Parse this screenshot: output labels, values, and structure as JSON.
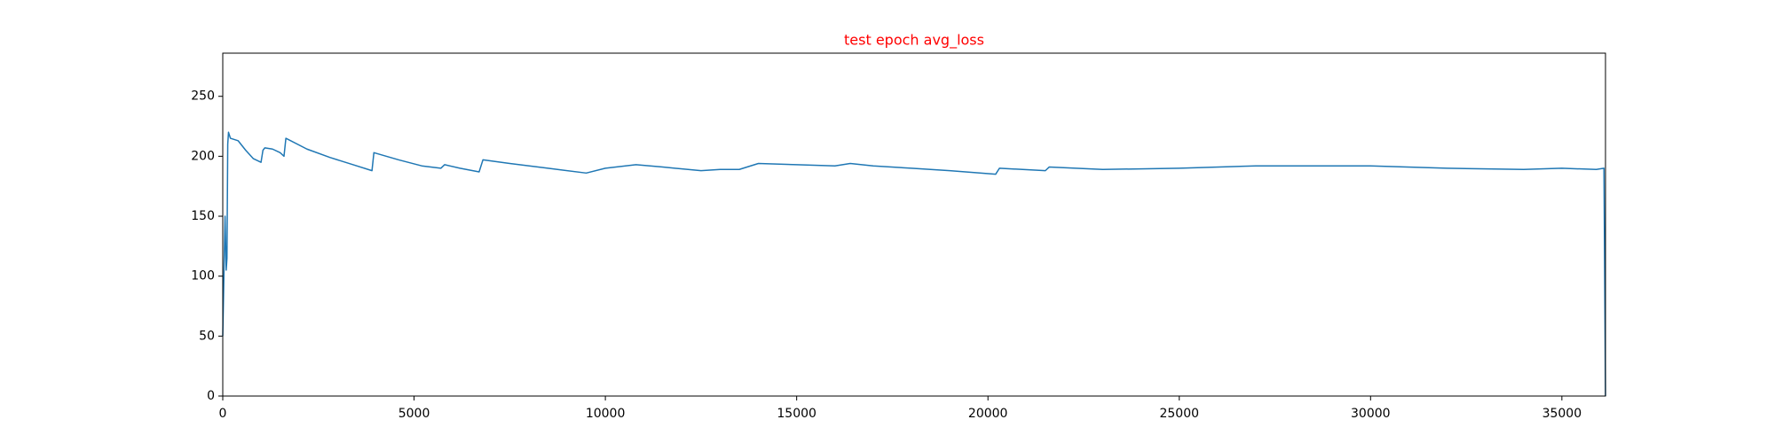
{
  "chart_data": {
    "type": "line",
    "title": "test epoch avg_loss",
    "title_color": "#ff0000",
    "x": [
      0,
      30,
      60,
      90,
      110,
      130,
      150,
      200,
      400,
      600,
      800,
      1000,
      1050,
      1100,
      1300,
      1500,
      1600,
      1650,
      2200,
      2800,
      3400,
      3900,
      3950,
      4600,
      5200,
      5700,
      5800,
      6200,
      6700,
      6800,
      7500,
      8500,
      9500,
      10000,
      10800,
      11500,
      12500,
      13000,
      13500,
      14000,
      15000,
      16000,
      16400,
      17000,
      18000,
      19000,
      20200,
      20300,
      21500,
      21600,
      23000,
      25000,
      27000,
      28500,
      30000,
      32000,
      34000,
      35000,
      35900,
      36100,
      36140
    ],
    "values": [
      50,
      100,
      150,
      105,
      115,
      210,
      220,
      215,
      213,
      205,
      198,
      195,
      205,
      207,
      206,
      203,
      200,
      215,
      206,
      199,
      193,
      188,
      203,
      197,
      192,
      190,
      193,
      190,
      187,
      197,
      194,
      190,
      186,
      190,
      193,
      191,
      188,
      189,
      189,
      194,
      193,
      192,
      194,
      192,
      190,
      188,
      185,
      190,
      188,
      191,
      189,
      190,
      192,
      192,
      192,
      190,
      189,
      190,
      189,
      190,
      0
    ],
    "color": "#1f77b4",
    "xlim": [
      0,
      36140
    ],
    "xticks": [
      0,
      5000,
      10000,
      15000,
      20000,
      25000,
      30000,
      35000
    ],
    "ylim": [
      0,
      286
    ],
    "yticks": [
      0,
      50,
      100,
      150,
      200,
      250
    ],
    "grid": false
  }
}
